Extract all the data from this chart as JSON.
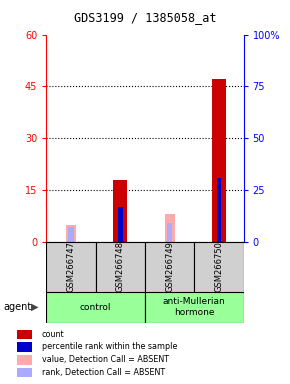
{
  "title": "GDS3199 / 1385058_at",
  "samples": [
    "GSM266747",
    "GSM266748",
    "GSM266749",
    "GSM266750"
  ],
  "count_values": [
    0,
    18,
    0,
    47
  ],
  "percentile_values": [
    0,
    17,
    0,
    31
  ],
  "absent_value_values": [
    5,
    0,
    8,
    0
  ],
  "absent_rank_values": [
    7,
    0,
    9,
    0
  ],
  "count_color": "#cc0000",
  "percentile_color": "#0000cc",
  "absent_value_color": "#ffaaaa",
  "absent_rank_color": "#aaaaff",
  "ylim_left": [
    0,
    60
  ],
  "ylim_right": [
    0,
    100
  ],
  "yticks_left": [
    0,
    15,
    30,
    45,
    60
  ],
  "yticks_right": [
    0,
    25,
    50,
    75,
    100
  ],
  "ytick_right_labels": [
    "0",
    "25",
    "50",
    "75",
    "100%"
  ],
  "legend_items": [
    {
      "label": "count",
      "color": "#cc0000"
    },
    {
      "label": "percentile rank within the sample",
      "color": "#0000cc"
    },
    {
      "label": "value, Detection Call = ABSENT",
      "color": "#ffaaaa"
    },
    {
      "label": "rank, Detection Call = ABSENT",
      "color": "#aaaaff"
    }
  ]
}
